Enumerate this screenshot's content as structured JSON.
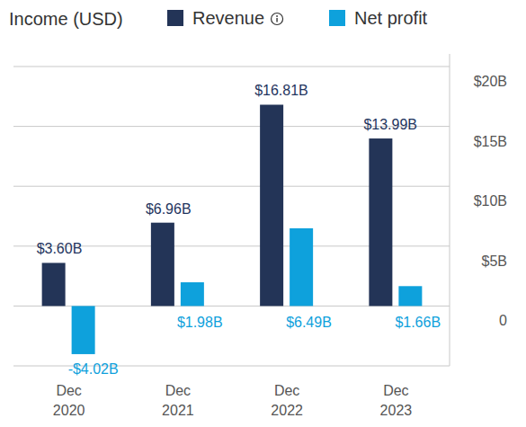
{
  "chart_data": {
    "type": "bar",
    "title": "Income (USD)",
    "categories": [
      "Dec 2020",
      "Dec 2021",
      "Dec 2022",
      "Dec 2023"
    ],
    "series": [
      {
        "name": "Revenue",
        "color": "#233457",
        "values": [
          3.6,
          6.96,
          16.81,
          13.99
        ],
        "value_labels": [
          "$3.60B",
          "$6.96B",
          "$16.81B",
          "$13.99B"
        ]
      },
      {
        "name": "Net profit",
        "color": "#0ea1dc",
        "values": [
          -4.02,
          1.98,
          6.49,
          1.66
        ],
        "value_labels": [
          "-$4.02B",
          "$1.98B",
          "$6.49B",
          "$1.66B"
        ]
      }
    ],
    "ylim": [
      -5,
      20
    ],
    "yticks": [
      0,
      {
        "value": 5,
        "label": "$5B"
      },
      {
        "value": 10,
        "label": "$10B"
      },
      {
        "value": 15,
        "label": "$15B"
      },
      {
        "value": 20,
        "label": "$20B"
      }
    ],
    "grid": true,
    "data_labels": true,
    "legend": "top"
  }
}
